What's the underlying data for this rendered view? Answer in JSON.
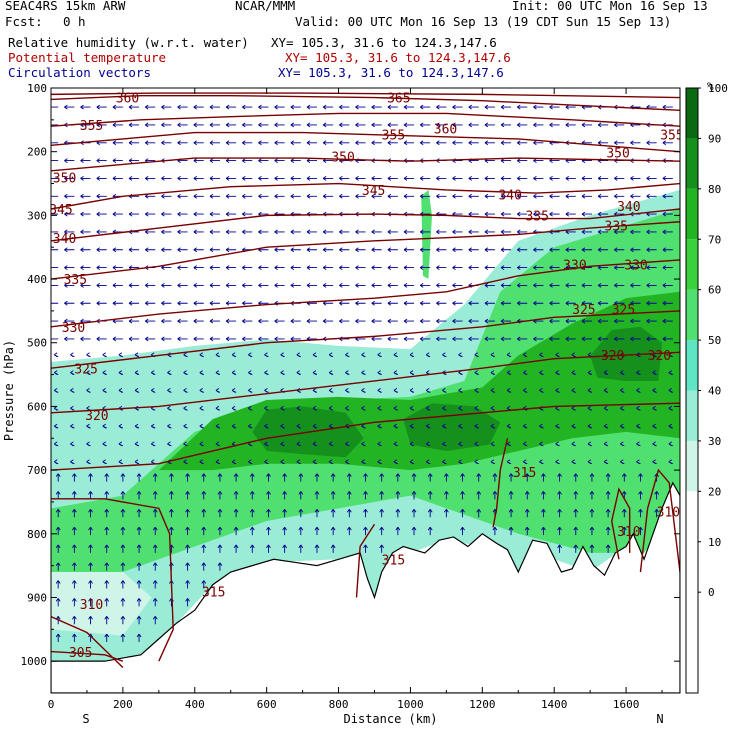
{
  "header": {
    "model": "SEAC4RS 15km ARW",
    "org": "NCAR/MMM",
    "init": "Init: 00 UTC Mon 16 Sep 13",
    "fcst_label": "Fcst:",
    "fcst_value": "0 h",
    "valid": "Valid: 00 UTC Mon 16 Sep 13 (19 CDT Sun 15 Sep 13)",
    "fields": [
      {
        "name": "Relative humidity (w.r.t. water)",
        "xy": "XY= 105.3, 31.6 to 124.3,147.6",
        "color": "#000000"
      },
      {
        "name": "Potential temperature",
        "xy": "XY= 105.3, 31.6 to 124.3,147.6",
        "color": "#b00000"
      },
      {
        "name": "Circulation vectors",
        "xy": "XY= 105.3, 31.6 to 124.3,147.6",
        "color": "#000090"
      }
    ]
  },
  "chart_data": {
    "type": "cross-section",
    "xlabel": "Distance (km)",
    "ylabel": "Pressure (hPa)",
    "xlim": [
      0,
      1750
    ],
    "ylim": [
      1050,
      100
    ],
    "x_ticks": [
      0,
      200,
      400,
      600,
      800,
      1000,
      1200,
      1400,
      1600
    ],
    "y_ticks": [
      100,
      200,
      300,
      400,
      500,
      600,
      700,
      800,
      900,
      1000
    ],
    "y_scale": "linear (inverted)",
    "x_end_labels": {
      "left": "S",
      "right": "N"
    },
    "colorbar": {
      "unit": "%",
      "levels": [
        -10,
        0,
        10,
        20,
        30,
        40,
        50,
        60,
        70,
        80,
        90,
        100,
        110
      ],
      "tick_labels": [
        0,
        10,
        20,
        30,
        40,
        50,
        60,
        70,
        80,
        90,
        100
      ],
      "colors": [
        "#ffffff",
        "#ffffff",
        "#ffffff",
        "#ffffff",
        "#cff5e8",
        "#9aecd6",
        "#5ee5c3",
        "#50e070",
        "#3ad23a",
        "#22b422",
        "#16901d",
        "#0a6a12"
      ]
    },
    "theta_labels": [
      {
        "value": 360,
        "x": 180,
        "p": 120
      },
      {
        "value": 355,
        "x": 80,
        "p": 163
      },
      {
        "value": 350,
        "x": 5,
        "p": 245
      },
      {
        "value": 345,
        "x": -5,
        "p": 295
      },
      {
        "value": 340,
        "x": 5,
        "p": 340
      },
      {
        "value": 335,
        "x": 35,
        "p": 405
      },
      {
        "value": 330,
        "x": 30,
        "p": 480
      },
      {
        "value": 325,
        "x": 65,
        "p": 545
      },
      {
        "value": 320,
        "x": 95,
        "p": 618
      },
      {
        "value": 315,
        "x": 420,
        "p": 895
      },
      {
        "value": 310,
        "x": 80,
        "p": 915
      },
      {
        "value": 305,
        "x": 50,
        "p": 990
      },
      {
        "value": 365,
        "x": 935,
        "p": 120
      },
      {
        "value": 360,
        "x": 1065,
        "p": 168
      },
      {
        "value": 355,
        "x": 920,
        "p": 178
      },
      {
        "value": 350,
        "x": 780,
        "p": 212
      },
      {
        "value": 345,
        "x": 865,
        "p": 265
      },
      {
        "value": 340,
        "x": 1245,
        "p": 272
      },
      {
        "value": 335,
        "x": 1320,
        "p": 305
      },
      {
        "value": 330,
        "x": 1425,
        "p": 382
      },
      {
        "value": 325,
        "x": 1450,
        "p": 452
      },
      {
        "value": 320,
        "x": 1530,
        "p": 524
      },
      {
        "value": 315,
        "x": 1285,
        "p": 708
      },
      {
        "value": 315,
        "x": 920,
        "p": 845
      },
      {
        "value": 310,
        "x": 1575,
        "p": 800
      },
      {
        "value": 310,
        "x": 1685,
        "p": 770
      },
      {
        "value": 355,
        "x": 1695,
        "p": 178
      },
      {
        "value": 350,
        "x": 1545,
        "p": 206
      },
      {
        "value": 340,
        "x": 1575,
        "p": 290
      },
      {
        "value": 335,
        "x": 1540,
        "p": 321
      },
      {
        "value": 330,
        "x": 1595,
        "p": 382
      },
      {
        "value": 325,
        "x": 1560,
        "p": 452
      },
      {
        "value": 320,
        "x": 1660,
        "p": 524
      }
    ],
    "theta_lines": [
      [
        [
          0,
          110
        ],
        [
          300,
          108
        ],
        [
          700,
          108
        ],
        [
          1200,
          110
        ],
        [
          1750,
          115
        ]
      ],
      [
        [
          0,
          118
        ],
        [
          250,
          112
        ],
        [
          500,
          112
        ],
        [
          900,
          115
        ],
        [
          1200,
          120
        ],
        [
          1750,
          135
        ]
      ],
      [
        [
          0,
          160
        ],
        [
          250,
          150
        ],
        [
          500,
          145
        ],
        [
          800,
          140
        ],
        [
          1100,
          140
        ],
        [
          1450,
          150
        ],
        [
          1750,
          160
        ]
      ],
      [
        [
          0,
          190
        ],
        [
          200,
          180
        ],
        [
          400,
          170
        ],
        [
          700,
          170
        ],
        [
          1000,
          175
        ],
        [
          1300,
          180
        ],
        [
          1750,
          200
        ]
      ],
      [
        [
          0,
          230
        ],
        [
          200,
          220
        ],
        [
          400,
          210
        ],
        [
          700,
          210
        ],
        [
          1000,
          215
        ],
        [
          1300,
          210
        ],
        [
          1750,
          215
        ]
      ],
      [
        [
          0,
          290
        ],
        [
          200,
          270
        ],
        [
          500,
          255
        ],
        [
          800,
          250
        ],
        [
          1100,
          260
        ],
        [
          1350,
          265
        ],
        [
          1550,
          260
        ],
        [
          1750,
          250
        ]
      ],
      [
        [
          0,
          340
        ],
        [
          300,
          320
        ],
        [
          600,
          300
        ],
        [
          900,
          298
        ],
        [
          1100,
          300
        ],
        [
          1300,
          305
        ],
        [
          1500,
          305
        ],
        [
          1750,
          290
        ]
      ],
      [
        [
          0,
          400
        ],
        [
          300,
          380
        ],
        [
          600,
          350
        ],
        [
          900,
          340
        ],
        [
          1100,
          335
        ],
        [
          1300,
          330
        ],
        [
          1500,
          320
        ],
        [
          1750,
          310
        ]
      ],
      [
        [
          0,
          475
        ],
        [
          300,
          455
        ],
        [
          600,
          440
        ],
        [
          900,
          430
        ],
        [
          1100,
          420
        ],
        [
          1300,
          395
        ],
        [
          1500,
          380
        ],
        [
          1750,
          370
        ]
      ],
      [
        [
          0,
          540
        ],
        [
          300,
          520
        ],
        [
          600,
          500
        ],
        [
          900,
          490
        ],
        [
          1200,
          475
        ],
        [
          1400,
          460
        ],
        [
          1750,
          450
        ]
      ],
      [
        [
          0,
          610
        ],
        [
          300,
          600
        ],
        [
          600,
          580
        ],
        [
          900,
          560
        ],
        [
          1200,
          540
        ],
        [
          1400,
          525
        ],
        [
          1750,
          515
        ]
      ],
      [
        [
          0,
          700
        ],
        [
          300,
          690
        ],
        [
          600,
          650
        ],
        [
          900,
          625
        ],
        [
          1200,
          610
        ],
        [
          1400,
          600
        ],
        [
          1750,
          595
        ]
      ],
      [
        [
          1270,
          650
        ],
        [
          1250,
          700
        ],
        [
          1240,
          760
        ],
        [
          1230,
          790
        ]
      ],
      [
        [
          900,
          785
        ],
        [
          860,
          820
        ],
        [
          850,
          900
        ]
      ],
      [
        [
          0,
          745
        ],
        [
          150,
          745
        ],
        [
          300,
          760
        ],
        [
          330,
          800
        ],
        [
          340,
          950
        ],
        [
          300,
          1000
        ]
      ],
      [
        [
          1580,
          840
        ],
        [
          1560,
          780
        ],
        [
          1580,
          730
        ],
        [
          1610,
          760
        ],
        [
          1610,
          830
        ]
      ],
      [
        [
          1640,
          860
        ],
        [
          1660,
          760
        ],
        [
          1690,
          700
        ],
        [
          1720,
          720
        ],
        [
          1750,
          860
        ]
      ],
      [
        [
          0,
          930
        ],
        [
          100,
          955
        ],
        [
          200,
          1010
        ]
      ],
      [
        [
          0,
          985
        ],
        [
          150,
          990
        ],
        [
          200,
          1000
        ]
      ]
    ],
    "terrain": [
      [
        0,
        1000
      ],
      [
        150,
        1000
      ],
      [
        250,
        990
      ],
      [
        300,
        965
      ],
      [
        350,
        940
      ],
      [
        400,
        920
      ],
      [
        450,
        880
      ],
      [
        500,
        860
      ],
      [
        560,
        850
      ],
      [
        620,
        840
      ],
      [
        680,
        845
      ],
      [
        740,
        850
      ],
      [
        800,
        840
      ],
      [
        860,
        830
      ],
      [
        880,
        870
      ],
      [
        900,
        900
      ],
      [
        920,
        860
      ],
      [
        950,
        830
      ],
      [
        980,
        820
      ],
      [
        1040,
        830
      ],
      [
        1080,
        810
      ],
      [
        1120,
        805
      ],
      [
        1160,
        820
      ],
      [
        1200,
        800
      ],
      [
        1240,
        815
      ],
      [
        1270,
        825
      ],
      [
        1300,
        860
      ],
      [
        1340,
        810
      ],
      [
        1380,
        815
      ],
      [
        1420,
        860
      ],
      [
        1450,
        855
      ],
      [
        1480,
        820
      ],
      [
        1510,
        850
      ],
      [
        1540,
        865
      ],
      [
        1570,
        830
      ],
      [
        1600,
        820
      ],
      [
        1620,
        800
      ],
      [
        1650,
        840
      ],
      [
        1700,
        760
      ],
      [
        1730,
        720
      ],
      [
        1750,
        740
      ]
    ],
    "rh_regions": [
      {
        "level": 40,
        "points": [
          [
            0,
            1000
          ],
          [
            0,
            530
          ],
          [
            200,
            520
          ],
          [
            400,
            505
          ],
          [
            600,
            495
          ],
          [
            800,
            505
          ],
          [
            1000,
            510
          ],
          [
            1150,
            440
          ],
          [
            1300,
            340
          ],
          [
            1500,
            300
          ],
          [
            1750,
            260
          ],
          [
            1750,
            760
          ],
          [
            1720,
            720
          ],
          [
            1690,
            780
          ],
          [
            1600,
            820
          ],
          [
            1500,
            860
          ],
          [
            1400,
            840
          ],
          [
            1300,
            860
          ],
          [
            1200,
            820
          ],
          [
            1100,
            810
          ],
          [
            1000,
            830
          ],
          [
            900,
            900
          ],
          [
            800,
            840
          ],
          [
            600,
            845
          ],
          [
            450,
            880
          ],
          [
            350,
            940
          ],
          [
            250,
            990
          ],
          [
            150,
            1000
          ]
        ]
      },
      {
        "level": 60,
        "points": [
          [
            0,
            760
          ],
          [
            200,
            740
          ],
          [
            400,
            640
          ],
          [
            600,
            600
          ],
          [
            800,
            590
          ],
          [
            1000,
            585
          ],
          [
            1150,
            560
          ],
          [
            1250,
            420
          ],
          [
            1400,
            350
          ],
          [
            1750,
            290
          ],
          [
            1750,
            760
          ],
          [
            1650,
            830
          ],
          [
            1500,
            830
          ],
          [
            1300,
            800
          ],
          [
            1200,
            780
          ],
          [
            1100,
            760
          ],
          [
            1000,
            740
          ],
          [
            800,
            760
          ],
          [
            600,
            780
          ],
          [
            400,
            820
          ],
          [
            200,
            860
          ],
          [
            0,
            860
          ]
        ]
      },
      {
        "level": 80,
        "points": [
          [
            300,
            700
          ],
          [
            450,
            620
          ],
          [
            600,
            590
          ],
          [
            800,
            585
          ],
          [
            1000,
            590
          ],
          [
            1200,
            570
          ],
          [
            1300,
            520
          ],
          [
            1450,
            470
          ],
          [
            1600,
            430
          ],
          [
            1750,
            420
          ],
          [
            1750,
            650
          ],
          [
            1600,
            640
          ],
          [
            1450,
            650
          ],
          [
            1300,
            670
          ],
          [
            1150,
            690
          ],
          [
            1000,
            700
          ],
          [
            800,
            690
          ],
          [
            600,
            690
          ],
          [
            450,
            700
          ]
        ]
      },
      {
        "level": 90,
        "points": [
          [
            560,
            640
          ],
          [
            600,
            605
          ],
          [
            700,
            600
          ],
          [
            820,
            610
          ],
          [
            870,
            650
          ],
          [
            820,
            680
          ],
          [
            700,
            675
          ],
          [
            600,
            670
          ]
        ]
      },
      {
        "level": 90,
        "points": [
          [
            980,
            620
          ],
          [
            1060,
            595
          ],
          [
            1180,
            600
          ],
          [
            1250,
            625
          ],
          [
            1220,
            660
          ],
          [
            1100,
            670
          ],
          [
            1000,
            660
          ]
        ]
      },
      {
        "level": 90,
        "points": [
          [
            1500,
            520
          ],
          [
            1560,
            480
          ],
          [
            1640,
            475
          ],
          [
            1700,
            500
          ],
          [
            1690,
            560
          ],
          [
            1600,
            560
          ],
          [
            1520,
            555
          ]
        ]
      },
      {
        "level": 60,
        "points": [
          [
            1030,
            270
          ],
          [
            1050,
            260
          ],
          [
            1060,
            300
          ],
          [
            1050,
            400
          ],
          [
            1035,
            395
          ]
        ]
      },
      {
        "level": 30,
        "points": [
          [
            0,
            860
          ],
          [
            200,
            860
          ],
          [
            280,
            900
          ],
          [
            200,
            960
          ],
          [
            0,
            950
          ]
        ]
      }
    ],
    "vectors": {
      "style": "small arrows pointing left (westward) aloft, upward near terrain",
      "color": "#000090"
    }
  }
}
